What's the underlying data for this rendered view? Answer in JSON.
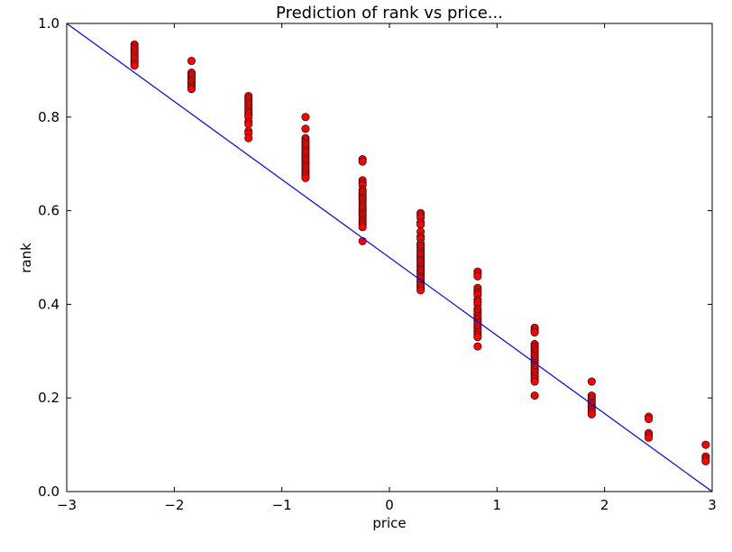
{
  "chart_data": {
    "type": "scatter",
    "title": "Prediction of rank vs price...",
    "xlabel": "price",
    "ylabel": "rank",
    "xlim": [
      -3,
      3
    ],
    "ylim": [
      0,
      1
    ],
    "x_ticks": [
      "−3",
      "−2",
      "−1",
      "0",
      "1",
      "2",
      "3"
    ],
    "y_ticks": [
      "0.0",
      "0.2",
      "0.4",
      "0.6",
      "0.8",
      "1.0"
    ],
    "grid": false,
    "legend": "none",
    "colors": {
      "points": "#ff0000",
      "point_edge": "#000000",
      "line": "#0000ff"
    },
    "series": [
      {
        "kind": "scatter",
        "points": [
          [
            -2.37,
            0.955
          ],
          [
            -2.37,
            0.95
          ],
          [
            -2.37,
            0.945
          ],
          [
            -2.37,
            0.94
          ],
          [
            -2.37,
            0.935
          ],
          [
            -2.37,
            0.93
          ],
          [
            -2.37,
            0.925
          ],
          [
            -2.37,
            0.92
          ],
          [
            -2.37,
            0.915
          ],
          [
            -2.37,
            0.91
          ],
          [
            -1.84,
            0.92
          ],
          [
            -1.84,
            0.895
          ],
          [
            -1.84,
            0.89
          ],
          [
            -1.84,
            0.885
          ],
          [
            -1.84,
            0.88
          ],
          [
            -1.84,
            0.875
          ],
          [
            -1.84,
            0.87
          ],
          [
            -1.84,
            0.865
          ],
          [
            -1.84,
            0.86
          ],
          [
            -1.31,
            0.845
          ],
          [
            -1.31,
            0.84
          ],
          [
            -1.31,
            0.835
          ],
          [
            -1.31,
            0.83
          ],
          [
            -1.31,
            0.825
          ],
          [
            -1.31,
            0.82
          ],
          [
            -1.31,
            0.815
          ],
          [
            -1.31,
            0.81
          ],
          [
            -1.31,
            0.805
          ],
          [
            -1.31,
            0.8
          ],
          [
            -1.31,
            0.79
          ],
          [
            -1.31,
            0.785
          ],
          [
            -1.31,
            0.77
          ],
          [
            -1.31,
            0.765
          ],
          [
            -1.31,
            0.755
          ],
          [
            -0.78,
            0.8
          ],
          [
            -0.78,
            0.775
          ],
          [
            -0.78,
            0.755
          ],
          [
            -0.78,
            0.75
          ],
          [
            -0.78,
            0.745
          ],
          [
            -0.78,
            0.74
          ],
          [
            -0.78,
            0.735
          ],
          [
            -0.78,
            0.73
          ],
          [
            -0.78,
            0.725
          ],
          [
            -0.78,
            0.72
          ],
          [
            -0.78,
            0.715
          ],
          [
            -0.78,
            0.71
          ],
          [
            -0.78,
            0.705
          ],
          [
            -0.78,
            0.7
          ],
          [
            -0.78,
            0.695
          ],
          [
            -0.78,
            0.69
          ],
          [
            -0.78,
            0.685
          ],
          [
            -0.78,
            0.68
          ],
          [
            -0.78,
            0.675
          ],
          [
            -0.78,
            0.67
          ],
          [
            -0.25,
            0.71
          ],
          [
            -0.25,
            0.705
          ],
          [
            -0.25,
            0.665
          ],
          [
            -0.25,
            0.66
          ],
          [
            -0.25,
            0.655
          ],
          [
            -0.25,
            0.645
          ],
          [
            -0.25,
            0.64
          ],
          [
            -0.25,
            0.635
          ],
          [
            -0.25,
            0.63
          ],
          [
            -0.25,
            0.625
          ],
          [
            -0.25,
            0.62
          ],
          [
            -0.25,
            0.615
          ],
          [
            -0.25,
            0.61
          ],
          [
            -0.25,
            0.605
          ],
          [
            -0.25,
            0.6
          ],
          [
            -0.25,
            0.595
          ],
          [
            -0.25,
            0.59
          ],
          [
            -0.25,
            0.585
          ],
          [
            -0.25,
            0.58
          ],
          [
            -0.25,
            0.575
          ],
          [
            -0.25,
            0.57
          ],
          [
            -0.25,
            0.565
          ],
          [
            -0.25,
            0.535
          ],
          [
            0.29,
            0.595
          ],
          [
            0.29,
            0.59
          ],
          [
            0.29,
            0.585
          ],
          [
            0.29,
            0.575
          ],
          [
            0.29,
            0.57
          ],
          [
            0.29,
            0.555
          ],
          [
            0.29,
            0.545
          ],
          [
            0.29,
            0.54
          ],
          [
            0.29,
            0.53
          ],
          [
            0.29,
            0.525
          ],
          [
            0.29,
            0.52
          ],
          [
            0.29,
            0.515
          ],
          [
            0.29,
            0.51
          ],
          [
            0.29,
            0.505
          ],
          [
            0.29,
            0.5
          ],
          [
            0.29,
            0.495
          ],
          [
            0.29,
            0.49
          ],
          [
            0.29,
            0.485
          ],
          [
            0.29,
            0.48
          ],
          [
            0.29,
            0.475
          ],
          [
            0.29,
            0.47
          ],
          [
            0.29,
            0.465
          ],
          [
            0.29,
            0.46
          ],
          [
            0.29,
            0.455
          ],
          [
            0.29,
            0.45
          ],
          [
            0.29,
            0.445
          ],
          [
            0.29,
            0.44
          ],
          [
            0.29,
            0.435
          ],
          [
            0.29,
            0.43
          ],
          [
            0.82,
            0.47
          ],
          [
            0.82,
            0.465
          ],
          [
            0.82,
            0.46
          ],
          [
            0.82,
            0.435
          ],
          [
            0.82,
            0.43
          ],
          [
            0.82,
            0.425
          ],
          [
            0.82,
            0.42
          ],
          [
            0.82,
            0.41
          ],
          [
            0.82,
            0.405
          ],
          [
            0.82,
            0.4
          ],
          [
            0.82,
            0.39
          ],
          [
            0.82,
            0.385
          ],
          [
            0.82,
            0.38
          ],
          [
            0.82,
            0.375
          ],
          [
            0.82,
            0.37
          ],
          [
            0.82,
            0.365
          ],
          [
            0.82,
            0.36
          ],
          [
            0.82,
            0.355
          ],
          [
            0.82,
            0.35
          ],
          [
            0.82,
            0.345
          ],
          [
            0.82,
            0.34
          ],
          [
            0.82,
            0.335
          ],
          [
            0.82,
            0.33
          ],
          [
            0.82,
            0.31
          ],
          [
            1.35,
            0.35
          ],
          [
            1.35,
            0.345
          ],
          [
            1.35,
            0.34
          ],
          [
            1.35,
            0.315
          ],
          [
            1.35,
            0.31
          ],
          [
            1.35,
            0.305
          ],
          [
            1.35,
            0.3
          ],
          [
            1.35,
            0.295
          ],
          [
            1.35,
            0.29
          ],
          [
            1.35,
            0.285
          ],
          [
            1.35,
            0.28
          ],
          [
            1.35,
            0.275
          ],
          [
            1.35,
            0.27
          ],
          [
            1.35,
            0.265
          ],
          [
            1.35,
            0.26
          ],
          [
            1.35,
            0.255
          ],
          [
            1.35,
            0.25
          ],
          [
            1.35,
            0.245
          ],
          [
            1.35,
            0.24
          ],
          [
            1.35,
            0.235
          ],
          [
            1.35,
            0.205
          ],
          [
            1.88,
            0.235
          ],
          [
            1.88,
            0.205
          ],
          [
            1.88,
            0.2
          ],
          [
            1.88,
            0.195
          ],
          [
            1.88,
            0.19
          ],
          [
            1.88,
            0.185
          ],
          [
            1.88,
            0.18
          ],
          [
            1.88,
            0.175
          ],
          [
            1.88,
            0.17
          ],
          [
            1.88,
            0.165
          ],
          [
            2.41,
            0.16
          ],
          [
            2.41,
            0.155
          ],
          [
            2.41,
            0.125
          ],
          [
            2.41,
            0.12
          ],
          [
            2.41,
            0.115
          ],
          [
            2.94,
            0.1
          ],
          [
            2.94,
            0.075
          ],
          [
            2.94,
            0.07
          ],
          [
            2.94,
            0.065
          ]
        ]
      },
      {
        "kind": "line",
        "points": [
          [
            -3,
            1.0
          ],
          [
            3,
            0.0
          ]
        ]
      }
    ]
  }
}
